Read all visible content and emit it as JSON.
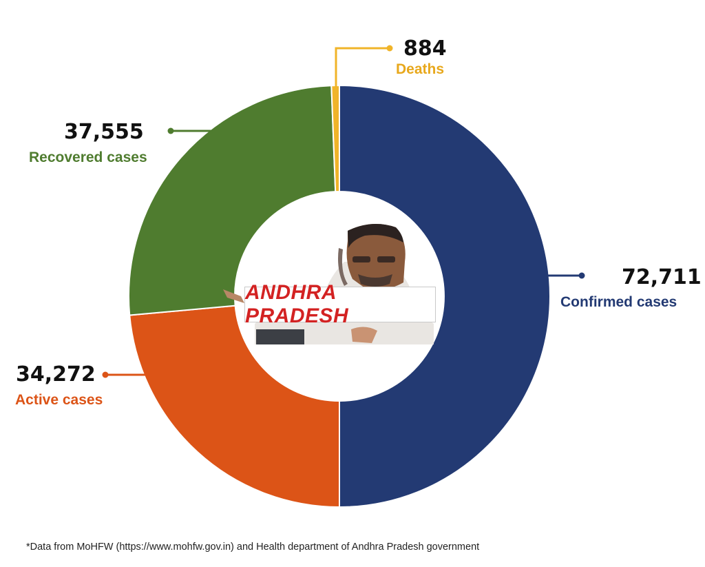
{
  "chart_data": {
    "type": "pie",
    "title": "",
    "center_label": "ANDHRA PRADESH",
    "slices": [
      {
        "label": "Confirmed cases",
        "value": 72711,
        "value_text": "72,711",
        "color": "#233a73"
      },
      {
        "label": "Active cases",
        "value": 34272,
        "value_text": "34,272",
        "color": "#dc5417"
      },
      {
        "label": "Recovered cases",
        "value": 37555,
        "value_text": "37,555",
        "color": "#4f7c2f"
      },
      {
        "label": "Deaths",
        "value": 884,
        "value_text": "884",
        "color": "#f0b429"
      }
    ],
    "footnote": "*Data from MoHFW (https://www.mohfw.gov.in) and Health department of Andhra Pradesh government"
  }
}
